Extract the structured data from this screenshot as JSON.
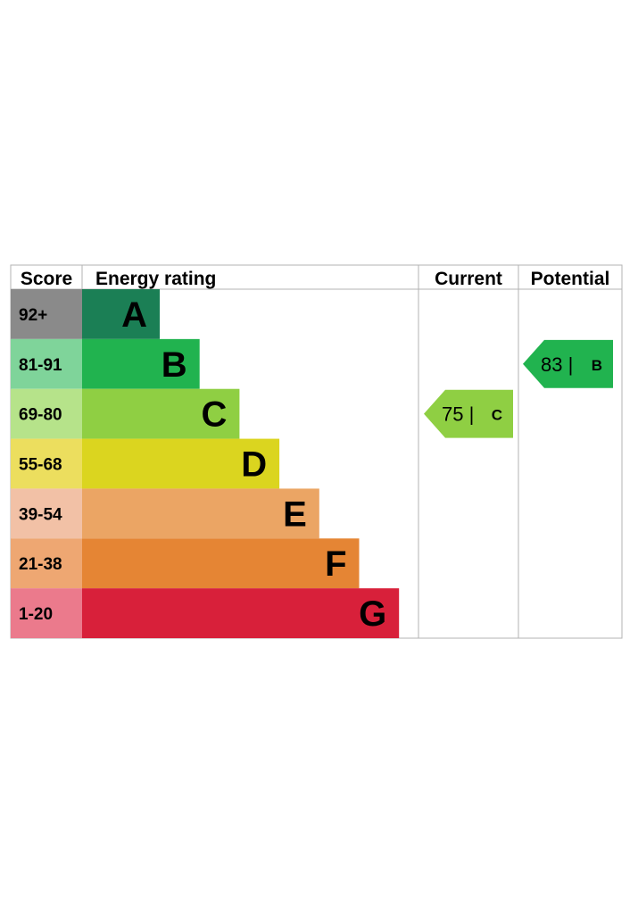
{
  "chart_data": {
    "type": "table",
    "headers": {
      "score": "Score",
      "rating": "Energy rating",
      "current": "Current",
      "potential": "Potential"
    },
    "bands": [
      {
        "letter": "A",
        "range": "92+",
        "color": "#1b7f55",
        "score_color": "#8a8a8a"
      },
      {
        "letter": "B",
        "range": "81-91",
        "color": "#21b34f",
        "score_color": "#7fd49a"
      },
      {
        "letter": "C",
        "range": "69-80",
        "color": "#8fcf43",
        "score_color": "#b6e38a"
      },
      {
        "letter": "D",
        "range": "55-68",
        "color": "#dbd51f",
        "score_color": "#ecde5e"
      },
      {
        "letter": "E",
        "range": "39-54",
        "color": "#eba564",
        "score_color": "#f2c1a6"
      },
      {
        "letter": "F",
        "range": "21-38",
        "color": "#e58534",
        "score_color": "#eea772"
      },
      {
        "letter": "G",
        "range": "1-20",
        "color": "#d8203a",
        "score_color": "#eb7a8c"
      }
    ],
    "current": {
      "value": 75,
      "band": "C",
      "label": "75 |",
      "band_label": "C",
      "color": "#8fcf43"
    },
    "potential": {
      "value": 83,
      "band": "B",
      "label": "83 |",
      "band_label": "B",
      "color": "#21b34f"
    }
  }
}
